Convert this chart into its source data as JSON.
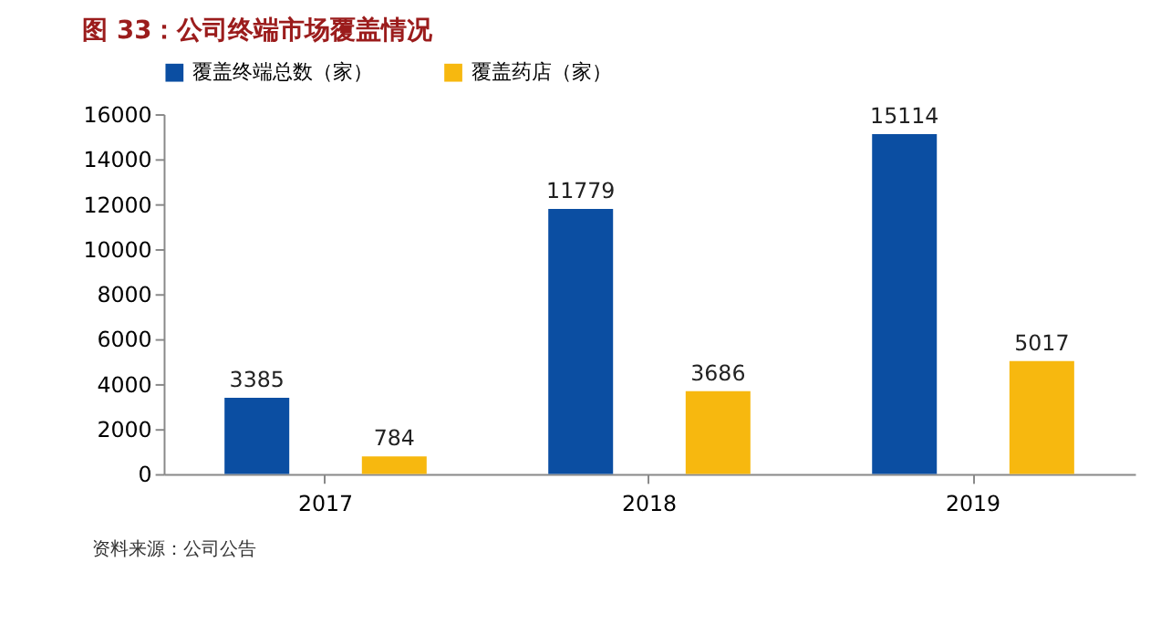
{
  "chart_data": {
    "type": "bar",
    "title": "图 33：公司终端市场覆盖情况",
    "categories": [
      "2017",
      "2018",
      "2019"
    ],
    "series": [
      {
        "name": "覆盖终端总数（家）",
        "color": "#0b4ea2",
        "values": [
          3385,
          11779,
          15114
        ]
      },
      {
        "name": "覆盖药店（家）",
        "color": "#f7b80f",
        "values": [
          784,
          3686,
          5017
        ]
      }
    ],
    "ylim": [
      0,
      16000
    ],
    "yticks": [
      0,
      2000,
      4000,
      6000,
      8000,
      10000,
      12000,
      14000,
      16000
    ],
    "grid": false,
    "legend": "top",
    "data_labels": true,
    "annotations": [
      "资料来源：公司公告"
    ]
  }
}
